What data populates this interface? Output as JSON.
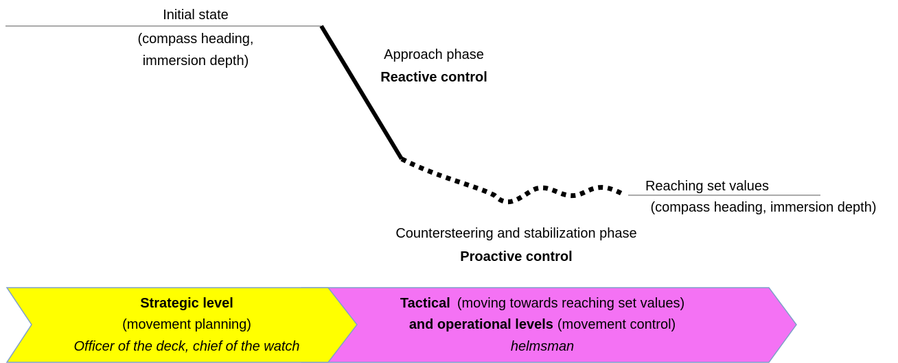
{
  "initial_state": {
    "title": "Initial state",
    "lines": [
      "(compass heading,",
      "immersion depth)"
    ]
  },
  "approach_phase": {
    "title": "Approach phase",
    "control": "Reactive control"
  },
  "set_values": {
    "title": "Reaching set values",
    "detail": "(compass heading, immersion depth)"
  },
  "stabilization_phase": {
    "title": "Countersteering and stabilization phase",
    "control": "Proactive control"
  },
  "strategic_level": {
    "title": "Strategic level",
    "detail": "(movement planning)",
    "roles": "Officer of the deck, chief of the watch"
  },
  "tactical_level": {
    "title": "Tactical",
    "title_detail": "(moving towards reaching set values)",
    "subtitle": "and operational levels",
    "subtitle_detail": "(movement control)",
    "roles": "helmsman"
  }
}
